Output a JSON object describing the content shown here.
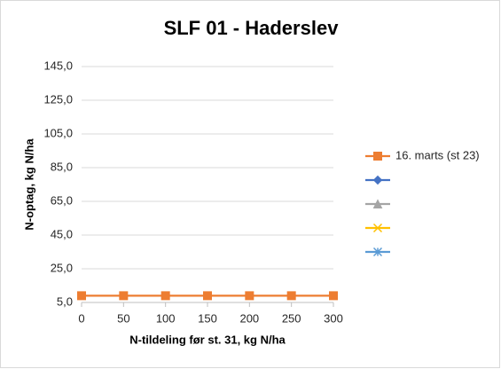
{
  "chart_data": {
    "type": "line",
    "title": "SLF 01 - Haderslev",
    "x_label": "N-tildeling før st. 31, kg N/ha",
    "y_label": "N-optag, kg N/ha",
    "x": [
      0,
      50,
      100,
      150,
      200,
      250,
      300
    ],
    "xlim": [
      0,
      300
    ],
    "xticks": [
      0,
      50,
      100,
      150,
      200,
      250,
      300
    ],
    "ylim": [
      5,
      145
    ],
    "yticks": [
      {
        "value": 5,
        "label": "5,0"
      },
      {
        "value": 25,
        "label": "25,0"
      },
      {
        "value": 45,
        "label": "45,0"
      },
      {
        "value": 65,
        "label": "65,0"
      },
      {
        "value": 85,
        "label": "85,0"
      },
      {
        "value": 105,
        "label": "105,0"
      },
      {
        "value": 125,
        "label": "125,0"
      },
      {
        "value": 145,
        "label": "145,0"
      }
    ],
    "grid": true,
    "legend": "right",
    "series": [
      {
        "name": "16. marts (st 23)",
        "color": "#ed7d31",
        "marker": "square",
        "values": [
          9,
          9,
          9,
          9,
          9,
          9,
          9
        ]
      },
      {
        "name": null,
        "color": "#4472c4",
        "marker": "diamond",
        "values": [
          null,
          null,
          null,
          null,
          null,
          null,
          null
        ]
      },
      {
        "name": null,
        "color": "#a5a5a5",
        "marker": "triangle",
        "values": [
          null,
          null,
          null,
          null,
          null,
          null,
          null
        ]
      },
      {
        "name": null,
        "color": "#ffc000",
        "marker": "x",
        "values": [
          null,
          null,
          null,
          null,
          null,
          null,
          null
        ]
      },
      {
        "name": null,
        "color": "#5b9bd5",
        "marker": "star",
        "values": [
          null,
          null,
          null,
          null,
          null,
          null,
          null
        ]
      }
    ]
  }
}
